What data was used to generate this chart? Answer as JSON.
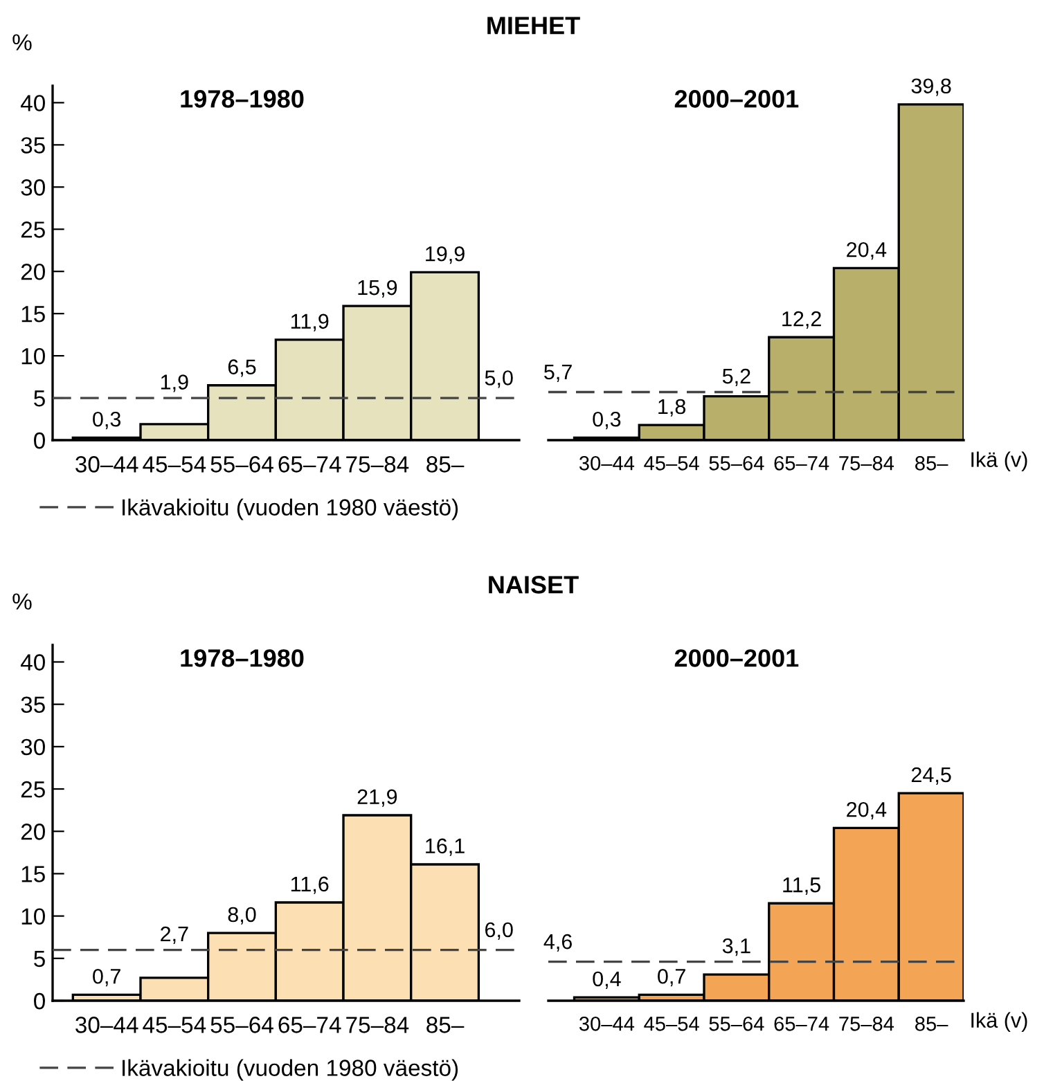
{
  "chart_data": [
    {
      "type": "bar",
      "title": "MIEHET",
      "subtitle": "1978–1980",
      "ylabel": "%",
      "categories": [
        "30–44",
        "45–54",
        "55–64",
        "65–74",
        "75–84",
        "85–"
      ],
      "values": [
        0.3,
        1.9,
        6.5,
        11.9,
        15.9,
        19.9
      ],
      "value_labels": [
        "0,3",
        "1,9",
        "6,5",
        "11,9",
        "15,9",
        "19,9"
      ],
      "color": "#e6e2bd",
      "ylim": [
        0,
        42
      ],
      "yticks": [
        0,
        5,
        10,
        15,
        20,
        25,
        30,
        35,
        40
      ],
      "grid": false,
      "ref_lines": [
        {
          "axis": "y",
          "value": 5.0,
          "label": "5,0",
          "color": "#444444",
          "line_style": "dashed"
        }
      ],
      "annotations": [
        "Ikävakioitu (vuoden 1980 väestö)"
      ]
    },
    {
      "type": "bar",
      "subtitle": "2000–2001",
      "xlabel": "Ikä (v)",
      "categories": [
        "30–44",
        "45–54",
        "55–64",
        "65–74",
        "75–84",
        "85–"
      ],
      "values": [
        0.3,
        1.8,
        5.2,
        12.2,
        20.4,
        39.8
      ],
      "value_labels": [
        "0,3",
        "1,8",
        "5,2",
        "12,2",
        "20,4",
        "39,8"
      ],
      "color": "#b8b06a",
      "tick_labels": "x",
      "grid": false,
      "ref_lines": [
        {
          "axis": "y",
          "value": 5.7,
          "label": "5,7",
          "color": "#444444",
          "line_style": "dashed"
        }
      ]
    },
    {
      "type": "bar",
      "title": "NAISET",
      "subtitle": "1978–1980",
      "ylabel": "%",
      "categories": [
        "30–44",
        "45–54",
        "55–64",
        "65–74",
        "75–84",
        "85–"
      ],
      "values": [
        0.7,
        2.7,
        8.0,
        11.6,
        21.9,
        16.1
      ],
      "value_labels": [
        "0,7",
        "2,7",
        "8,0",
        "11,6",
        "21,9",
        "16,1"
      ],
      "color": "#fce0b4",
      "ylim": [
        0,
        42
      ],
      "yticks": [
        0,
        5,
        10,
        15,
        20,
        25,
        30,
        35,
        40
      ],
      "grid": false,
      "ref_lines": [
        {
          "axis": "y",
          "value": 6.0,
          "label": "6,0",
          "color": "#444444",
          "line_style": "dashed"
        }
      ],
      "annotations": [
        "Ikävakioitu (vuoden 1980 väestö)"
      ]
    },
    {
      "type": "bar",
      "subtitle": "2000–2001",
      "xlabel": "Ikä (v)",
      "categories": [
        "30–44",
        "45–54",
        "55–64",
        "65–74",
        "75–84",
        "85–"
      ],
      "values": [
        0.4,
        0.7,
        3.1,
        11.5,
        20.4,
        24.5
      ],
      "value_labels": [
        "0,4",
        "0,7",
        "3,1",
        "11,5",
        "20,4",
        "24,5"
      ],
      "color": "#f4a455",
      "tick_labels": "x",
      "grid": false,
      "ref_lines": [
        {
          "axis": "y",
          "value": 4.6,
          "label": "4,6",
          "color": "#444444",
          "line_style": "dashed"
        }
      ]
    }
  ]
}
